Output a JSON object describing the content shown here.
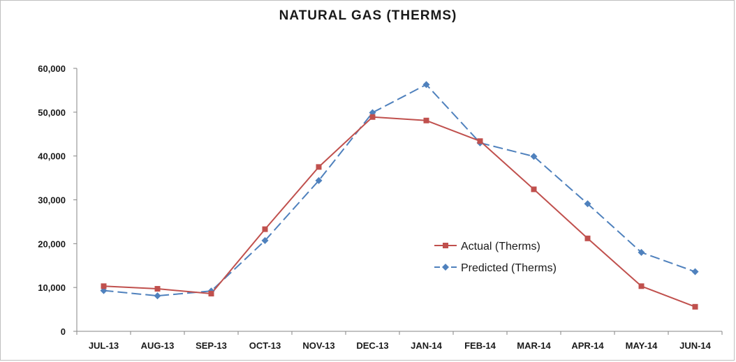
{
  "chart_data": {
    "type": "line",
    "title": "NATURAL GAS (THERMS)",
    "xlabel": "",
    "ylabel": "",
    "categories": [
      "JUL-13",
      "AUG-13",
      "SEP-13",
      "OCT-13",
      "NOV-13",
      "DEC-13",
      "JAN-14",
      "FEB-14",
      "MAR-14",
      "APR-14",
      "MAY-14",
      "JUN-14"
    ],
    "y_ticks": [
      "0",
      "10,000",
      "20,000",
      "30,000",
      "40,000",
      "50,000",
      "60,000"
    ],
    "ylim": [
      0,
      60000
    ],
    "grid": false,
    "legend_position": "center-right",
    "series": [
      {
        "name": "Actual (Therms)",
        "color": "#c0504d",
        "marker": "square",
        "dash": "solid",
        "values": [
          10300,
          9700,
          8600,
          23300,
          37500,
          48900,
          48100,
          43400,
          32400,
          21200,
          10300,
          5600
        ]
      },
      {
        "name": "Predicted (Therms)",
        "color": "#4f81bd",
        "marker": "diamond",
        "dash": "dashed",
        "values": [
          9300,
          8100,
          9200,
          20700,
          34400,
          49900,
          56300,
          43000,
          39900,
          29100,
          18000,
          13600
        ]
      }
    ]
  }
}
